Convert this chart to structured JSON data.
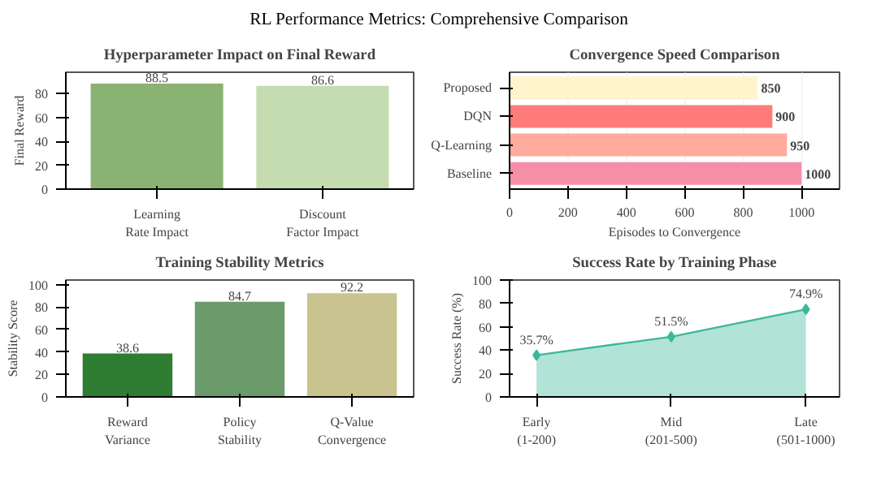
{
  "chart_data": [
    {
      "type": "bar",
      "title": "Hyperparameter Impact on Final Reward",
      "ylabel": "Final Reward",
      "annotations": [
        "RL Performance Metrics: Comprehensive Comparison"
      ],
      "categories": [
        "Learning\nRate Impact",
        "Discount\nFactor Impact"
      ],
      "values": [
        88.5,
        86.6
      ],
      "colors": [
        "#8ab273",
        "#c5dcb0"
      ],
      "ylim": [
        0,
        98
      ],
      "yticks": [
        0,
        20,
        40,
        60,
        80
      ],
      "data_labels": true
    },
    {
      "type": "bar",
      "orientation": "horizontal",
      "title": "Convergence Speed Comparison",
      "xlabel": "Episodes to Convergence",
      "categories": [
        "Proposed",
        "DQN",
        "Q-Learning",
        "Baseline"
      ],
      "values": [
        850,
        900,
        950,
        1000
      ],
      "colors": [
        "#fff4cc",
        "#ff7b7b",
        "#ffab9e",
        "#f78ea8"
      ],
      "xlim": [
        0,
        1130
      ],
      "xticks": [
        0,
        200,
        400,
        600,
        800,
        1000
      ],
      "grid": "x",
      "data_labels": true
    },
    {
      "type": "bar",
      "title": "Training Stability Metrics",
      "ylabel": "Stability Score",
      "categories": [
        "Reward\nVariance",
        "Policy\nStability",
        "Q-Value\nConvergence"
      ],
      "values": [
        38.6,
        84.7,
        92.2
      ],
      "colors": [
        "#2e7d32",
        "#6b9a6b",
        "#c9c48f"
      ],
      "ylim": [
        0,
        104
      ],
      "yticks": [
        0,
        20,
        40,
        60,
        80,
        100
      ],
      "data_labels": true
    },
    {
      "type": "area",
      "title": "Success Rate by Training Phase",
      "ylabel": "Success Rate (%)",
      "categories": [
        "Early\n(1-200)",
        "Mid\n(201-500)",
        "Late\n(501-1000)"
      ],
      "values": [
        35.7,
        51.5,
        74.9
      ],
      "value_labels": [
        "35.7%",
        "51.5%",
        "74.9%"
      ],
      "color": "#3cb89a",
      "marker": "diamond",
      "ylim": [
        0,
        100
      ],
      "yticks": [
        0,
        20,
        40,
        60,
        80,
        100
      ]
    }
  ]
}
